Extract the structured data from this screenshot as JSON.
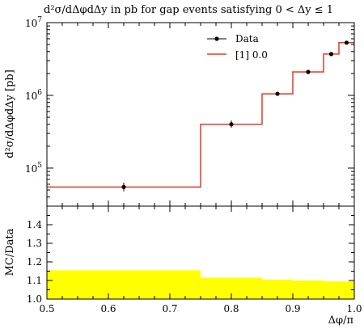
{
  "chart_data": [
    {
      "type": "line",
      "title": "d²σ/dΔφdΔy in pb for gap events satisfying 0 < Δy ≤ 1",
      "xlabel": "Δφ/π",
      "ylabel": "d²σ/dΔφdΔy [pb]",
      "xlim": [
        0.5,
        1.0
      ],
      "ylim": [
        30000,
        10000000
      ],
      "yscale": "log",
      "legend_position": "top-right",
      "x_ticks": [
        "0.5",
        "0.6",
        "0.7",
        "0.8",
        "0.9",
        "1.0"
      ],
      "y_ticks": [
        {
          "base": "10",
          "exp": "5"
        },
        {
          "base": "10",
          "exp": "6"
        },
        {
          "base": "10",
          "exp": "7"
        }
      ],
      "series": [
        {
          "name": "Data",
          "style": "points-with-errorbars",
          "color": "#000000",
          "points": [
            {
              "x": 0.625,
              "y": 55000,
              "yerr_low": 48000,
              "yerr_high": 63000
            },
            {
              "x": 0.8,
              "y": 400000,
              "yerr_low": 360000,
              "yerr_high": 450000
            },
            {
              "x": 0.875,
              "y": 1050000,
              "yerr_low": 990000,
              "yerr_high": 1110000
            },
            {
              "x": 0.925,
              "y": 2100000,
              "yerr_low": 2000000,
              "yerr_high": 2200000
            },
            {
              "x": 0.9625,
              "y": 3700000,
              "yerr_low": 3550000,
              "yerr_high": 3850000
            },
            {
              "x": 0.9875,
              "y": 5300000,
              "yerr_low": 5100000,
              "yerr_high": 5500000
            }
          ]
        },
        {
          "name": "[1] 0.0",
          "style": "step",
          "color": "#e8382a",
          "bins": [
            {
              "x0": 0.5,
              "x1": 0.75,
              "y": 55000
            },
            {
              "x0": 0.75,
              "x1": 0.85,
              "y": 400000
            },
            {
              "x0": 0.85,
              "x1": 0.9,
              "y": 1050000
            },
            {
              "x0": 0.9,
              "x1": 0.95,
              "y": 2100000
            },
            {
              "x0": 0.95,
              "x1": 0.975,
              "y": 3700000
            },
            {
              "x0": 0.975,
              "x1": 1.0,
              "y": 5300000
            }
          ]
        }
      ]
    },
    {
      "type": "area",
      "xlabel": "Δφ/π",
      "ylabel": "MC/Data",
      "xlim": [
        0.5,
        1.0
      ],
      "ylim": [
        1.0,
        1.5
      ],
      "x_ticks": [
        "0.5",
        "0.6",
        "0.7",
        "0.8",
        "0.9",
        "1.0"
      ],
      "y_ticks": [
        "1.0",
        "1.1",
        "1.2",
        "1.3",
        "1.4"
      ],
      "band": {
        "color": "#ffff00",
        "bins": [
          {
            "x0": 0.5,
            "x1": 0.75,
            "low": 1.0,
            "high": 1.155
          },
          {
            "x0": 0.75,
            "x1": 0.85,
            "low": 1.0,
            "high": 1.115
          },
          {
            "x0": 0.85,
            "x1": 0.9,
            "low": 1.0,
            "high": 1.105
          },
          {
            "x0": 0.9,
            "x1": 0.95,
            "low": 1.0,
            "high": 1.1
          },
          {
            "x0": 0.95,
            "x1": 0.975,
            "low": 1.0,
            "high": 1.095
          },
          {
            "x0": 0.975,
            "x1": 1.0,
            "low": 1.0,
            "high": 1.095
          }
        ]
      }
    }
  ]
}
